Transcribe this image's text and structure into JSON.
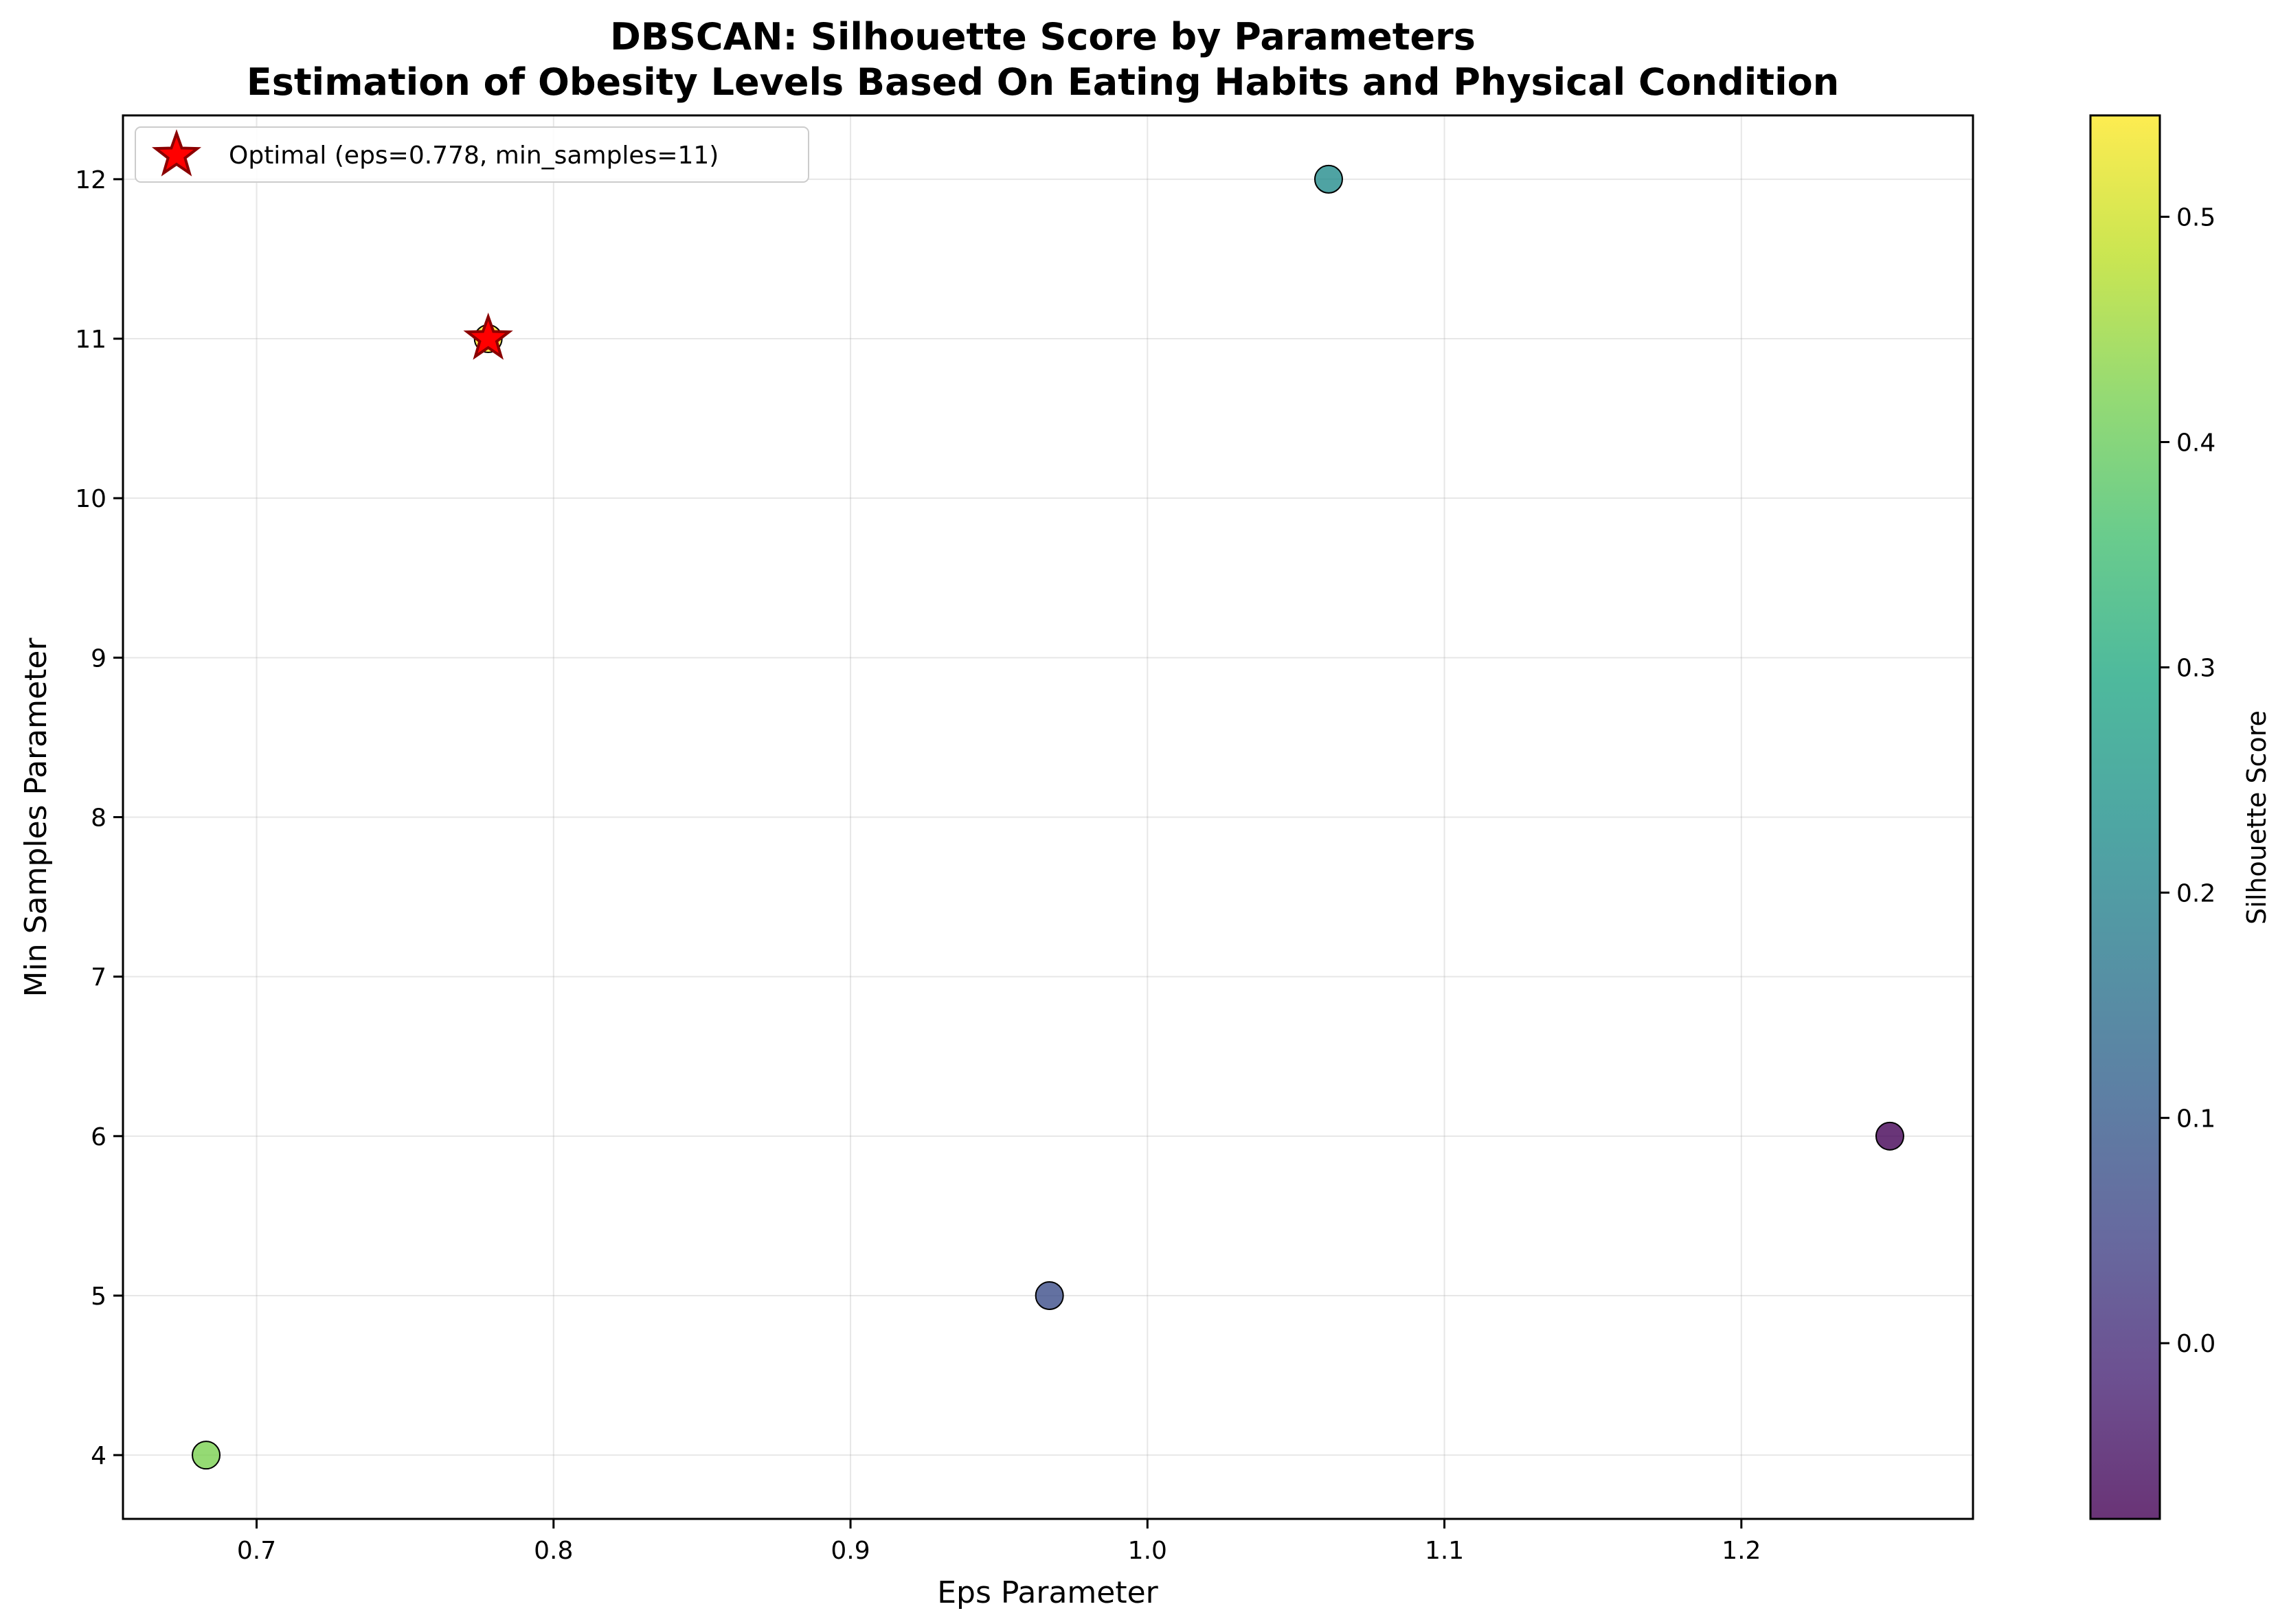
{
  "chart_data": {
    "type": "scatter",
    "title": "DBSCAN: Silhouette Score by Parameters",
    "subtitle": "Estimation of Obesity Levels Based On Eating Habits and Physical Condition",
    "xlabel": "Eps Parameter",
    "ylabel": "Min Samples Parameter",
    "xlim": [
      0.655,
      1.278
    ],
    "ylim": [
      3.6,
      12.4
    ],
    "xticks": [
      0.7,
      0.8,
      0.9,
      1.0,
      1.1,
      1.2
    ],
    "xtick_labels": [
      "0.7",
      "0.8",
      "0.9",
      "1.0",
      "1.1",
      "1.2"
    ],
    "yticks": [
      4,
      5,
      6,
      7,
      8,
      9,
      10,
      11,
      12
    ],
    "ytick_labels": [
      "4",
      "5",
      "6",
      "7",
      "8",
      "9",
      "10",
      "11",
      "12"
    ],
    "grid": true,
    "colormap": "viridis",
    "points": [
      {
        "x": 0.683,
        "y": 4,
        "score": 0.42
      },
      {
        "x": 0.778,
        "y": 11,
        "score": 0.545
      },
      {
        "x": 0.967,
        "y": 5,
        "score": 0.07
      },
      {
        "x": 1.061,
        "y": 12,
        "score": 0.22
      },
      {
        "x": 1.25,
        "y": 6,
        "score": -0.075
      }
    ],
    "optimal": {
      "x": 0.778,
      "y": 11,
      "color": "#ff0000",
      "edge_color": "#8b0000"
    },
    "legend": {
      "label": "Optimal (eps=0.778, min_samples=11)",
      "placement": "upper-left"
    },
    "colorbar": {
      "label": "Silhouette Score",
      "range": [
        -0.078,
        0.545
      ],
      "ticks": [
        0.0,
        0.1,
        0.2,
        0.3,
        0.4,
        0.5
      ],
      "tick_labels": [
        "0.0",
        "0.1",
        "0.2",
        "0.3",
        "0.4",
        "0.5"
      ]
    }
  }
}
